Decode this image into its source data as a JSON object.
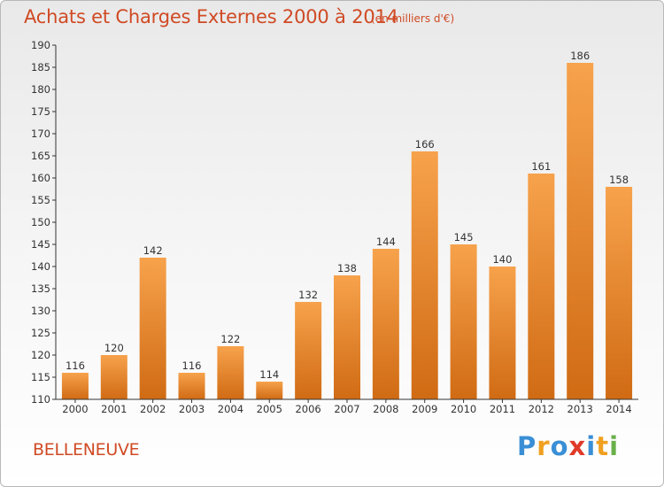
{
  "title": "Achats et Charges Externes 2000 à 2014",
  "subtitle": "(en milliers d'€)",
  "commune": "BELLENEUVE",
  "logo": {
    "text": "Proxiti",
    "letters": [
      {
        "ch": "P",
        "color": "#3a8fd6"
      },
      {
        "ch": "r",
        "color": "#f0a020"
      },
      {
        "ch": "o",
        "color": "#3a8fd6"
      },
      {
        "ch": "x",
        "color": "#e03a2a"
      },
      {
        "ch": "i",
        "color": "#3a8fd6"
      },
      {
        "ch": "t",
        "color": "#f0a020"
      },
      {
        "ch": "i",
        "color": "#6ab04a"
      }
    ]
  },
  "colors": {
    "title": "#d04a24",
    "bar_top": "#f7a24c",
    "bar_bottom": "#d06b14",
    "axis": "#333333",
    "grid": "#dddddd"
  },
  "chart_data": {
    "type": "bar",
    "categories": [
      "2000",
      "2001",
      "2002",
      "2003",
      "2004",
      "2005",
      "2006",
      "2007",
      "2008",
      "2009",
      "2010",
      "2011",
      "2012",
      "2013",
      "2014"
    ],
    "values": [
      116,
      120,
      142,
      116,
      122,
      114,
      132,
      138,
      144,
      166,
      145,
      140,
      161,
      186,
      158
    ],
    "ylim": [
      110,
      190
    ],
    "yticks": [
      110,
      115,
      120,
      125,
      130,
      135,
      140,
      145,
      150,
      155,
      160,
      165,
      170,
      175,
      180,
      185,
      190
    ],
    "xlabel": "",
    "ylabel": "",
    "grid": false,
    "data_labels": true
  }
}
